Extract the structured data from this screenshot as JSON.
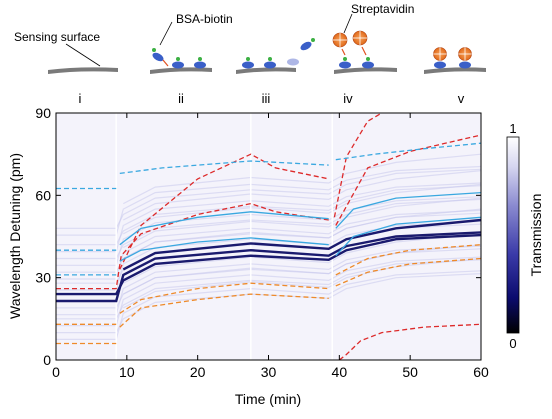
{
  "stages": {
    "sensing_surface_label": "Sensing surface",
    "bsa_biotin_label": "BSA-biotin",
    "streptavidin_label": "Streptavidin",
    "roman": [
      "i",
      "ii",
      "iii",
      "iv",
      "v"
    ]
  },
  "colorbar": {
    "label": "Transmission",
    "max_label": "1",
    "min_label": "0"
  },
  "chart_data": {
    "type": "heatmap",
    "title": "",
    "xlabel": "Time (min)",
    "ylabel": "Wavelength Detuning (pm)",
    "xlim": [
      0,
      60
    ],
    "ylim": [
      0,
      90
    ],
    "xticks": [
      0,
      10,
      20,
      30,
      40,
      50,
      60
    ],
    "yticks": [
      0,
      30,
      60,
      90
    ],
    "stage_boundaries_min": [
      8.5,
      27.5,
      39
    ],
    "colorscale": [
      "#000000",
      "#0b0b6e",
      "#3a3aa8",
      "#8a8ad0",
      "#d6d6f0",
      "#ffffff"
    ],
    "colorbar_range": [
      0,
      1
    ],
    "series": [
      {
        "color": "#dd2a2a",
        "style": "dashed",
        "points": [
          [
            0,
            26
          ],
          [
            8.5,
            26
          ],
          [
            9.2,
            38
          ],
          [
            12,
            46
          ],
          [
            20,
            53
          ],
          [
            27.5,
            57
          ],
          [
            31,
            54
          ],
          [
            38.5,
            51
          ]
        ]
      },
      {
        "color": "#dd2a2a",
        "style": "dashed",
        "points": [
          [
            9,
            33
          ],
          [
            12,
            49
          ],
          [
            20,
            66
          ],
          [
            27.5,
            75
          ],
          [
            31,
            70
          ],
          [
            38.5,
            66
          ]
        ]
      },
      {
        "color": "#dd2a2a",
        "style": "dashed",
        "points": [
          [
            39.3,
            52
          ],
          [
            41,
            74
          ],
          [
            44,
            87
          ],
          [
            46,
            90
          ]
        ]
      },
      {
        "color": "#dd2a2a",
        "style": "dashed",
        "points": [
          [
            40,
            0
          ],
          [
            41,
            2
          ],
          [
            43,
            7
          ],
          [
            46,
            10
          ],
          [
            52,
            12
          ],
          [
            60,
            13
          ]
        ]
      },
      {
        "color": "#dd2a2a",
        "style": "dashed",
        "points": [
          [
            39.5,
            49
          ],
          [
            44,
            70
          ],
          [
            50,
            76
          ],
          [
            60,
            82
          ]
        ]
      },
      {
        "color": "#3aa8e0",
        "style": "dashed",
        "points": [
          [
            0,
            62.5
          ],
          [
            8.5,
            62.5
          ]
        ]
      },
      {
        "color": "#3aa8e0",
        "style": "dashed",
        "points": [
          [
            9,
            68
          ],
          [
            15,
            70
          ],
          [
            27.5,
            72.5
          ],
          [
            38.5,
            71
          ]
        ]
      },
      {
        "color": "#3aa8e0",
        "style": "dashed",
        "points": [
          [
            39.5,
            73
          ],
          [
            45,
            75
          ],
          [
            52,
            77
          ],
          [
            60,
            79
          ]
        ]
      },
      {
        "color": "#3aa8e0",
        "style": "dashed",
        "points": [
          [
            0,
            31
          ],
          [
            8.5,
            31
          ]
        ]
      },
      {
        "color": "#3aa8e0",
        "style": "dashed",
        "points": [
          [
            0,
            40
          ],
          [
            8.5,
            40
          ]
        ]
      },
      {
        "color": "#3aa8e0",
        "style": "solid",
        "points": [
          [
            9,
            42
          ],
          [
            12,
            48
          ],
          [
            20,
            52
          ],
          [
            27.5,
            54
          ],
          [
            38.5,
            51.5
          ]
        ]
      },
      {
        "color": "#3aa8e0",
        "style": "solid",
        "points": [
          [
            9,
            36
          ],
          [
            12,
            40
          ],
          [
            20,
            43
          ],
          [
            27.5,
            44.5
          ],
          [
            38.5,
            42
          ]
        ]
      },
      {
        "color": "#3aa8e0",
        "style": "solid",
        "points": [
          [
            39.5,
            48
          ],
          [
            42,
            55
          ],
          [
            48,
            59
          ],
          [
            60,
            61
          ]
        ]
      },
      {
        "color": "#3aa8e0",
        "style": "solid",
        "points": [
          [
            39.5,
            38
          ],
          [
            42,
            45
          ],
          [
            48,
            49.5
          ],
          [
            60,
            52
          ]
        ]
      },
      {
        "color": "#ee8a2a",
        "style": "dashed",
        "points": [
          [
            0,
            13
          ],
          [
            8.5,
            13
          ]
        ]
      },
      {
        "color": "#ee8a2a",
        "style": "dashed",
        "points": [
          [
            0,
            6
          ],
          [
            8.5,
            6
          ]
        ]
      },
      {
        "color": "#ee8a2a",
        "style": "dashed",
        "points": [
          [
            9,
            17
          ],
          [
            12,
            22
          ],
          [
            20,
            26
          ],
          [
            27.5,
            28
          ],
          [
            38.5,
            26
          ]
        ]
      },
      {
        "color": "#ee8a2a",
        "style": "dashed",
        "points": [
          [
            9,
            12
          ],
          [
            12,
            19
          ],
          [
            20,
            22
          ],
          [
            27.5,
            24
          ],
          [
            38.5,
            22.5
          ]
        ]
      },
      {
        "color": "#ee8a2a",
        "style": "dashed",
        "points": [
          [
            39.5,
            27
          ],
          [
            44,
            32
          ],
          [
            50,
            35
          ],
          [
            60,
            37
          ]
        ]
      },
      {
        "color": "#ee8a2a",
        "style": "dashed",
        "points": [
          [
            39.5,
            31
          ],
          [
            44,
            37
          ],
          [
            50,
            40
          ],
          [
            60,
            42
          ]
        ]
      }
    ],
    "dark_bands": [
      {
        "points": [
          [
            0,
            24
          ],
          [
            8.5,
            24
          ],
          [
            9.5,
            29
          ],
          [
            14,
            35
          ],
          [
            27.5,
            38
          ],
          [
            38.5,
            36.5
          ],
          [
            41,
            40
          ],
          [
            48,
            44
          ],
          [
            60,
            45.5
          ]
        ]
      },
      {
        "points": [
          [
            0,
            21.5
          ],
          [
            8.5,
            21.5
          ],
          [
            9.5,
            31
          ],
          [
            14,
            37
          ],
          [
            27.5,
            40
          ],
          [
            38.5,
            38
          ],
          [
            41,
            41.5
          ],
          [
            48,
            45
          ],
          [
            60,
            46.5
          ]
        ]
      },
      {
        "points": [
          [
            9.5,
            33
          ],
          [
            14,
            39
          ],
          [
            27.5,
            42.5
          ],
          [
            38.5,
            40.5
          ],
          [
            41,
            44
          ],
          [
            48,
            48
          ],
          [
            60,
            51
          ]
        ]
      }
    ]
  }
}
